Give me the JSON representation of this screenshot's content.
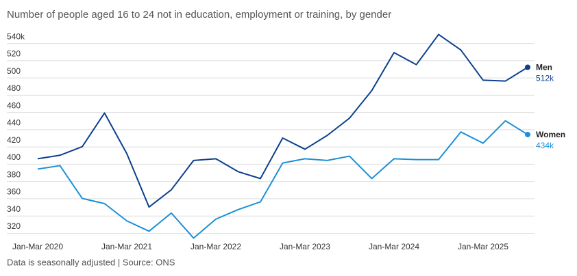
{
  "chart_data": {
    "type": "line",
    "title": "Number of people aged 16 to 24 not in education, employment or training, by gender",
    "footnote": "Data is seasonally adjusted | Source: ONS",
    "categories": [
      "Jan-Mar 2020",
      null,
      null,
      null,
      "Jan-Mar 2021",
      null,
      null,
      null,
      "Jan-Mar 2022",
      null,
      null,
      null,
      "Jan-Mar 2023",
      null,
      null,
      null,
      "Jan-Mar 2024",
      null,
      null,
      null,
      "Jan-Mar 2025",
      null,
      null
    ],
    "series": [
      {
        "name": "Men",
        "color": "#0c3f8e",
        "values": [
          406,
          410,
          420,
          459,
          412,
          350,
          370,
          404,
          406,
          391,
          383,
          430,
          417,
          433,
          453,
          485,
          529,
          515,
          550,
          532,
          497,
          496,
          512
        ],
        "value_labels": [
          null,
          null,
          null,
          null,
          null,
          null,
          null,
          null,
          null,
          null,
          null,
          null,
          null,
          null,
          null,
          null,
          null,
          null,
          null,
          null,
          null,
          null,
          "512k"
        ]
      },
      {
        "name": "Women",
        "color": "#1b8fd8",
        "values": [
          394,
          398,
          360,
          354,
          334,
          322,
          343,
          314,
          336,
          347,
          356,
          401,
          406,
          404,
          409,
          383,
          406,
          405,
          405,
          437,
          424,
          450,
          434
        ],
        "value_labels": [
          null,
          null,
          null,
          null,
          null,
          null,
          null,
          null,
          null,
          null,
          null,
          null,
          null,
          null,
          null,
          null,
          null,
          null,
          null,
          null,
          null,
          null,
          "434k"
        ]
      }
    ],
    "ylim": [
      316,
      548
    ],
    "yticks": [
      320,
      340,
      360,
      380,
      400,
      420,
      440,
      460,
      480,
      500,
      520,
      {
        "value": 540,
        "label": "540k"
      }
    ],
    "grid": true
  }
}
